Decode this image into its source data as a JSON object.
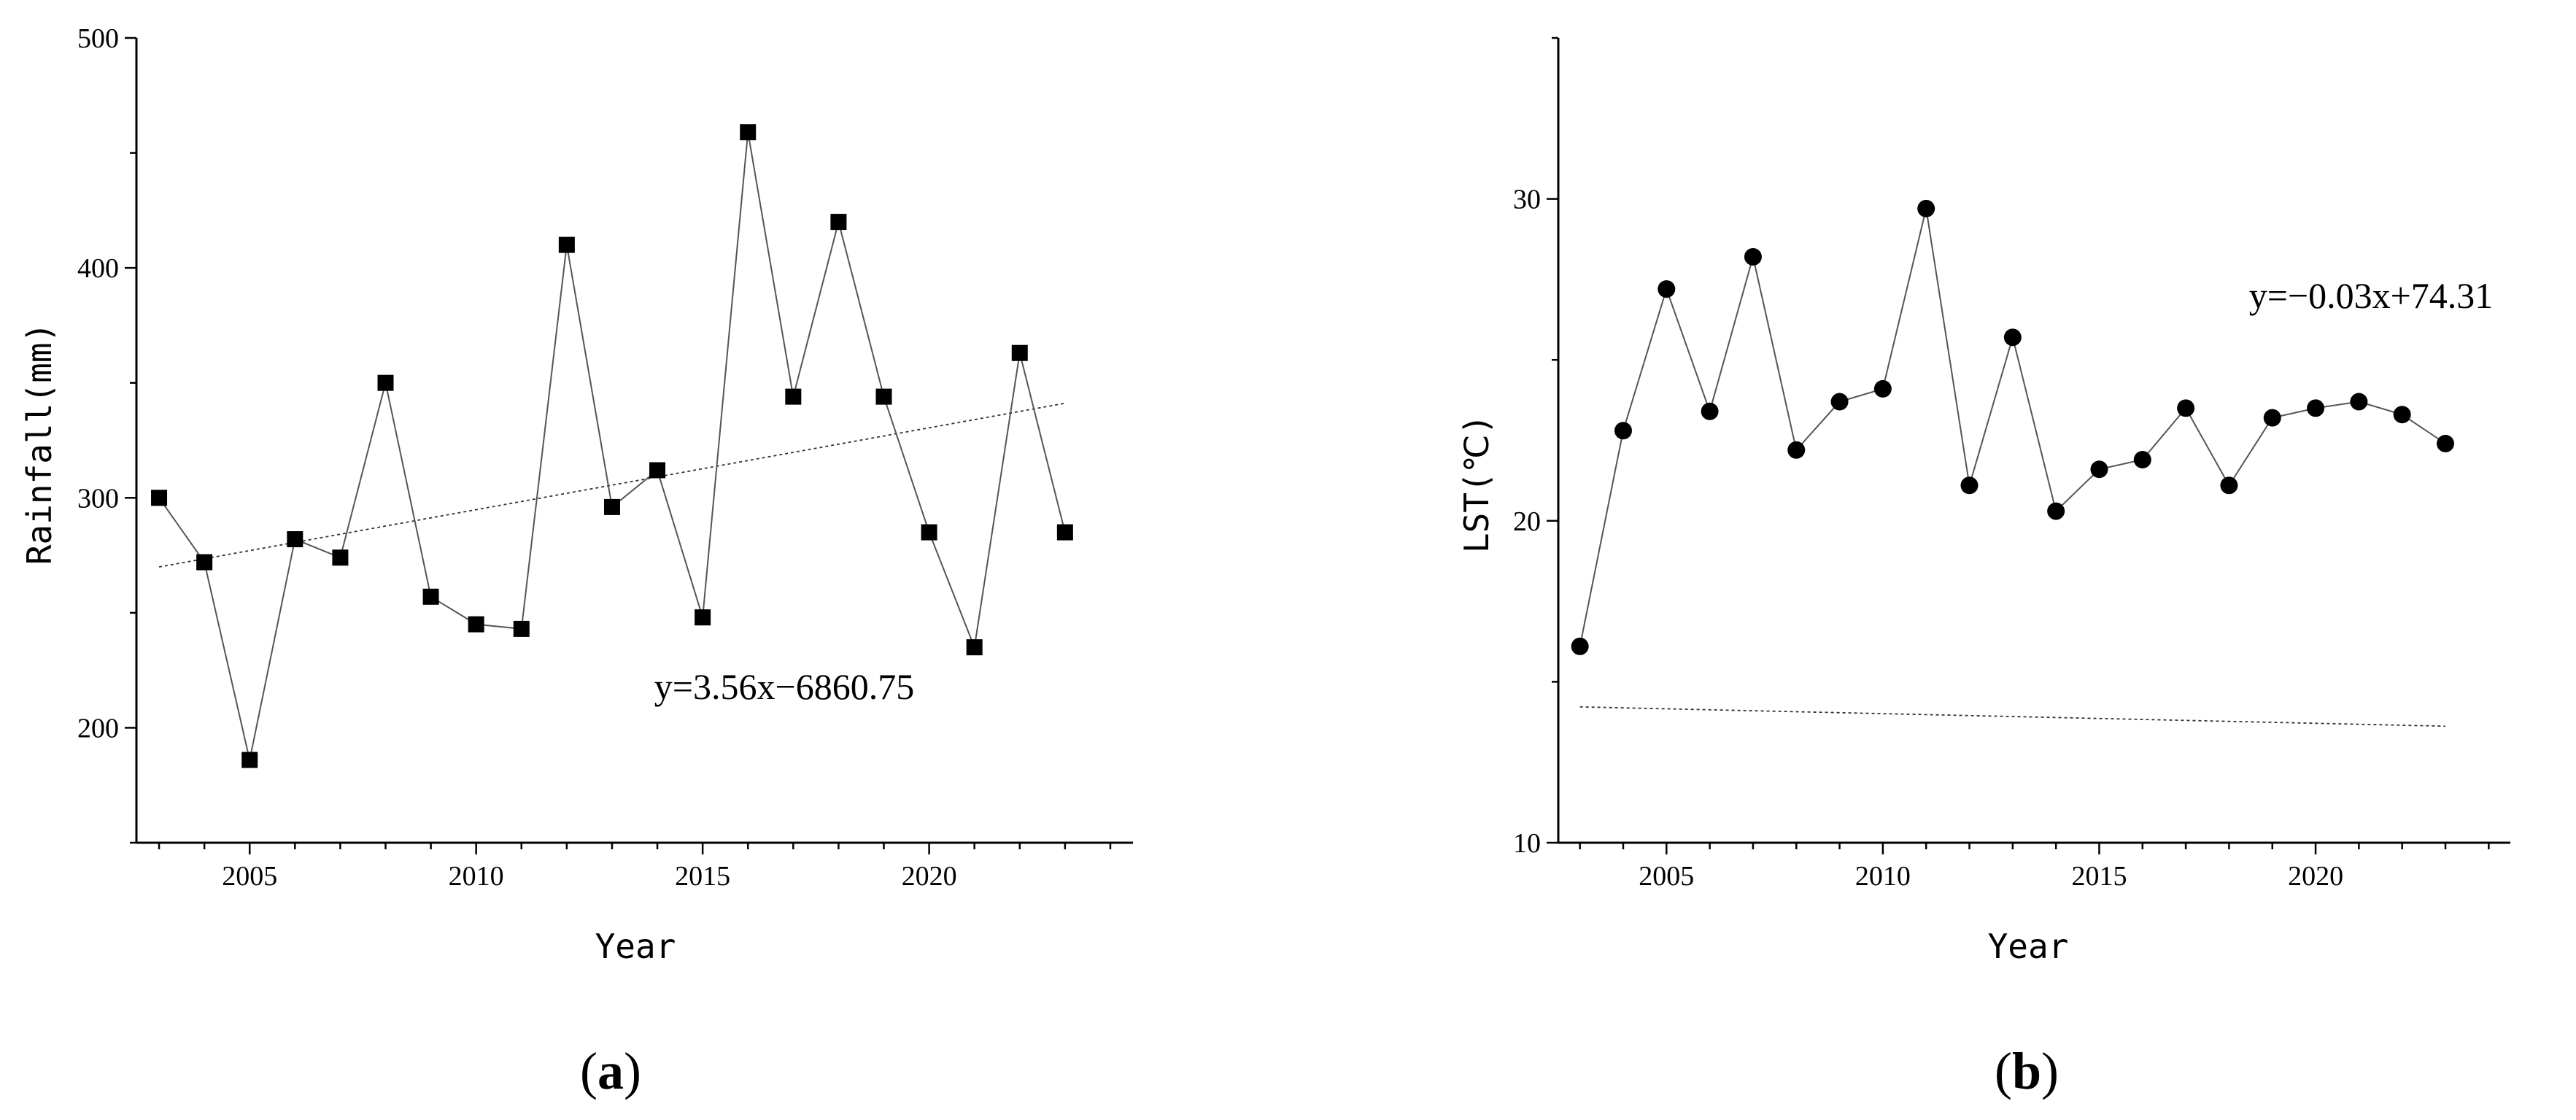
{
  "chart_data": [
    {
      "type": "line",
      "panel_label": "a",
      "xlabel": "Year",
      "ylabel": "Rainfall(mm)",
      "xlim": [
        2002.5,
        2024.5
      ],
      "ylim": [
        150,
        500
      ],
      "x_ticks": [
        2005,
        2010,
        2015,
        2020
      ],
      "x_tick_labels": [
        "2005",
        "2010",
        "2015",
        "2020"
      ],
      "y_ticks": [
        200,
        300,
        400,
        500
      ],
      "y_tick_labels": [
        "200",
        "300",
        "400",
        "500"
      ],
      "marker": "square",
      "series": [
        {
          "x": [
            2003,
            2004,
            2005,
            2006,
            2007,
            2008,
            2009,
            2010,
            2011,
            2012,
            2013,
            2014,
            2015,
            2016,
            2017,
            2018,
            2019,
            2020,
            2021,
            2022,
            2023
          ],
          "values": [
            300,
            272,
            186,
            282,
            274,
            350,
            257,
            245,
            243,
            410,
            296,
            312,
            248,
            459,
            344,
            420,
            344,
            285,
            235,
            363,
            285
          ]
        }
      ],
      "trendline": {
        "slope": 3.56,
        "intercept": -6860.75,
        "x_range": [
          2003,
          2023
        ]
      },
      "annotation": "y=3.56x−6860.75",
      "grid": false
    },
    {
      "type": "line",
      "panel_label": "b",
      "xlabel": "Year",
      "ylabel": "LST(℃)",
      "xlim": [
        2002.5,
        2024.5
      ],
      "ylim": [
        10,
        35
      ],
      "x_ticks": [
        2005,
        2010,
        2015,
        2020
      ],
      "x_tick_labels": [
        "2005",
        "2010",
        "2015",
        "2020"
      ],
      "y_ticks": [
        10,
        20,
        30
      ],
      "y_tick_labels": [
        "10",
        "20",
        "30"
      ],
      "marker": "circle",
      "series": [
        {
          "x": [
            2003,
            2004,
            2005,
            2006,
            2007,
            2008,
            2009,
            2010,
            2011,
            2012,
            2013,
            2014,
            2015,
            2016,
            2017,
            2018,
            2019,
            2020,
            2021,
            2022,
            2023
          ],
          "values": [
            16.1,
            22.8,
            27.2,
            23.4,
            28.2,
            22.2,
            23.7,
            24.1,
            29.7,
            21.1,
            25.7,
            20.3,
            21.6,
            21.9,
            23.5,
            21.1,
            23.2,
            23.5,
            23.7,
            23.3,
            22.4
          ]
        }
      ],
      "trendline": {
        "slope": -0.03,
        "intercept": 74.31,
        "x_range": [
          2003,
          2023
        ]
      },
      "annotation": "y=−0.03x+74.31",
      "grid": false
    }
  ]
}
